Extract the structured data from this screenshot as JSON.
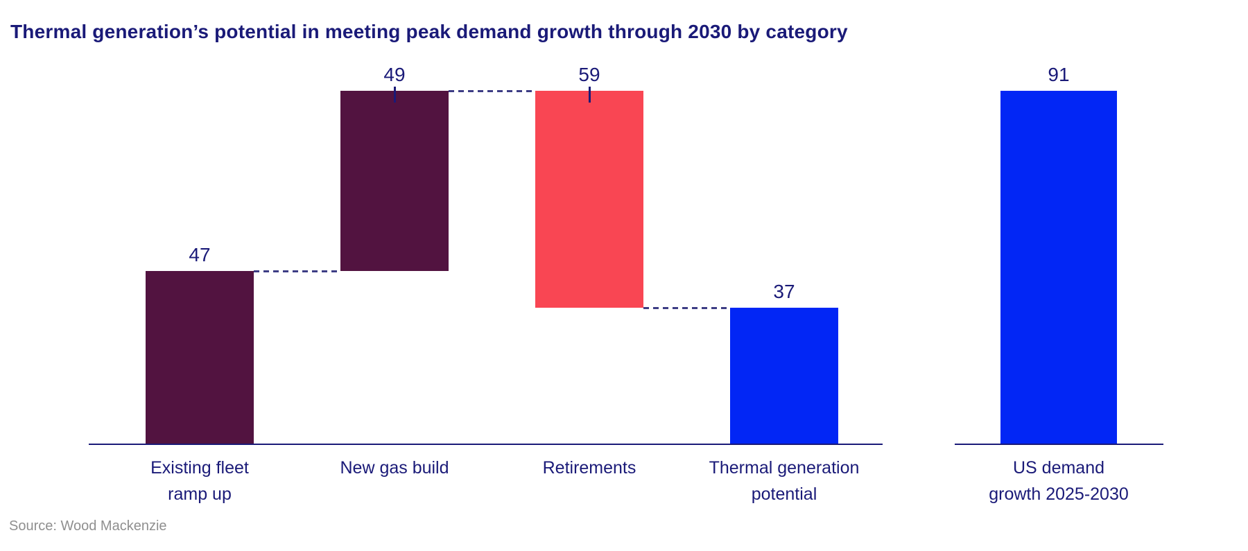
{
  "page": {
    "title": "Thermal generation’s potential in meeting peak demand growth through 2030 by category",
    "source": "Source: Wood Mackenzie"
  },
  "colors": {
    "navy": "#1a1a78",
    "maroon": "#521340",
    "red": "#f94653",
    "blue": "#0226f5",
    "connector": "#3d3d85",
    "source_gray": "#8f8f8f"
  },
  "chart_data": {
    "type": "bar",
    "subtype": "waterfall",
    "title": "Thermal generation’s potential in meeting peak demand growth through 2030 by category",
    "categories": [
      "Existing fleet ramp up",
      "New gas build",
      "Retirements",
      "Thermal generation potential",
      "US demand growth 2025-2030"
    ],
    "values": [
      47,
      49,
      -59,
      37,
      91
    ],
    "data_labels": [
      "47",
      "49",
      "59",
      "37",
      "91"
    ],
    "running_totals": [
      47,
      96,
      37,
      37,
      null
    ],
    "xlabel": "",
    "ylabel": "",
    "y_axis_visible": false,
    "grid": false,
    "legend": false,
    "baseline": 0,
    "bars": [
      {
        "id": "existing-fleet-ramp-up",
        "label_lines": [
          "Existing fleet",
          "ramp up"
        ],
        "value": 47,
        "display_value": "47",
        "kind": "increase",
        "color_key": "maroon",
        "tick": false,
        "group": "waterfall"
      },
      {
        "id": "new-gas-build",
        "label_lines": [
          "New gas build"
        ],
        "value": 49,
        "display_value": "49",
        "kind": "increase",
        "color_key": "maroon",
        "tick": true,
        "group": "waterfall"
      },
      {
        "id": "retirements",
        "label_lines": [
          "Retirements"
        ],
        "value": -59,
        "display_value": "59",
        "kind": "decrease",
        "color_key": "red",
        "tick": true,
        "group": "waterfall"
      },
      {
        "id": "thermal-generation-potential",
        "label_lines": [
          "Thermal generation",
          "potential"
        ],
        "value": 37,
        "display_value": "37",
        "kind": "total",
        "color_key": "blue",
        "tick": false,
        "group": "waterfall"
      },
      {
        "id": "us-demand-growth-2025-2030",
        "label_lines": [
          "US demand",
          "growth 2025-2030"
        ],
        "value": 91,
        "display_value": "91",
        "kind": "total",
        "color_key": "blue",
        "tick": false,
        "group": "comparison"
      }
    ]
  }
}
